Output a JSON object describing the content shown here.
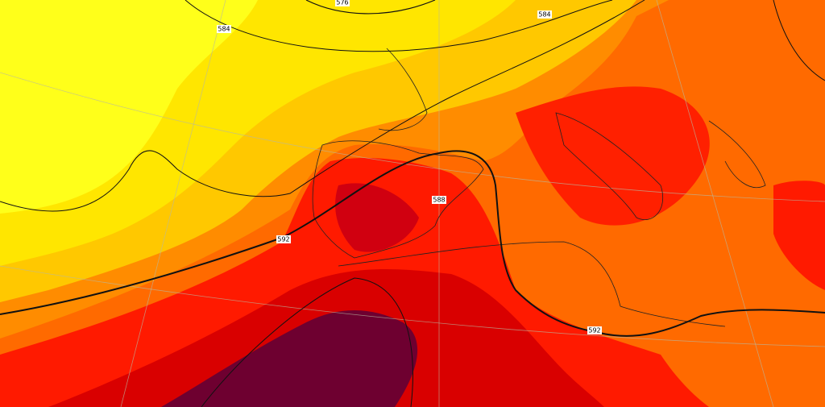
{
  "map": {
    "contour_labels": [
      "576",
      "584",
      "584",
      "588",
      "592",
      "592"
    ]
  }
}
